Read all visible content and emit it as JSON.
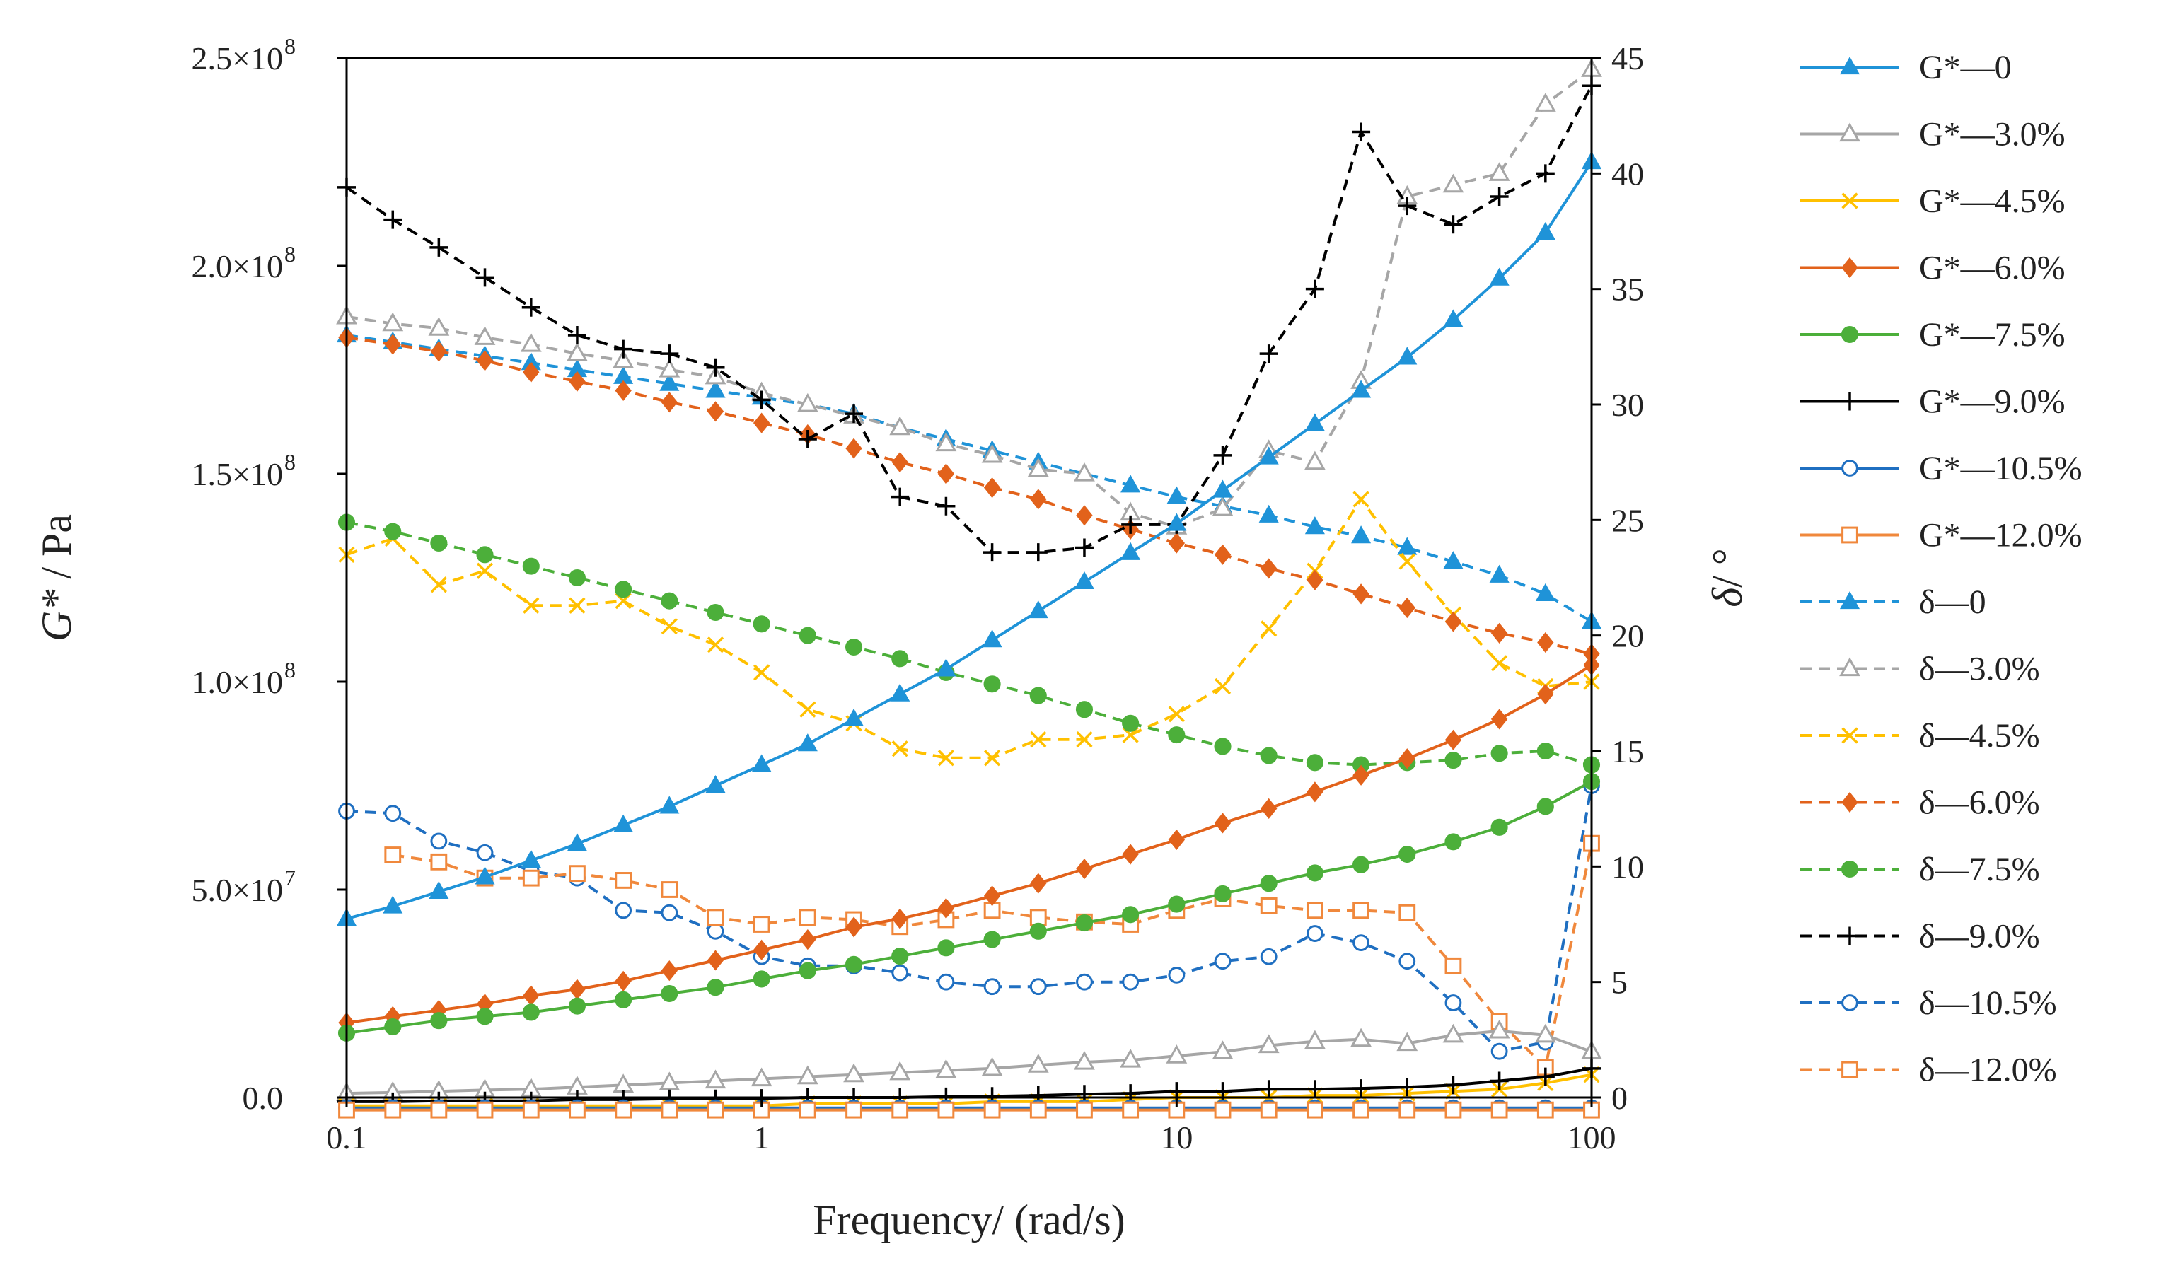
{
  "chart_data": {
    "type": "line",
    "title": "",
    "xlabel": "Frequency/ (rad/s)",
    "ylabel_left_italic": "G*",
    "ylabel_left_rest": " / Pa",
    "ylabel_right_italic": "δ",
    "ylabel_right_rest": "/ °",
    "xscale": "log",
    "xlim": [
      0.1,
      100
    ],
    "ylim_left": [
      0,
      250000000
    ],
    "ylim_right": [
      0,
      45
    ],
    "grid": false,
    "legend_position": "right",
    "x_ticks": [
      {
        "value": 0.1,
        "label": "0.1"
      },
      {
        "value": 1,
        "label": "1"
      },
      {
        "value": 10,
        "label": "10"
      },
      {
        "value": 100,
        "label": "100"
      }
    ],
    "y_left_ticks": [
      {
        "value": 0,
        "mant": "0.0",
        "exp": ""
      },
      {
        "value": 50000000,
        "mant": "5.0×10",
        "exp": "7"
      },
      {
        "value": 100000000,
        "mant": "1.0×10",
        "exp": "8"
      },
      {
        "value": 150000000,
        "mant": "1.5×10",
        "exp": "8"
      },
      {
        "value": 200000000,
        "mant": "2.0×10",
        "exp": "8"
      },
      {
        "value": 250000000,
        "mant": "2.5×10",
        "exp": "8"
      }
    ],
    "y_right_ticks": [
      {
        "value": 0,
        "label": "0"
      },
      {
        "value": 5,
        "label": "5"
      },
      {
        "value": 10,
        "label": "10"
      },
      {
        "value": 15,
        "label": "15"
      },
      {
        "value": 20,
        "label": "20"
      },
      {
        "value": 25,
        "label": "25"
      },
      {
        "value": 30,
        "label": "30"
      },
      {
        "value": 35,
        "label": "35"
      },
      {
        "value": 40,
        "label": "40"
      },
      {
        "value": 45,
        "label": "45"
      }
    ],
    "x": [
      0.1,
      0.1292,
      0.1668,
      0.2154,
      0.2783,
      0.3594,
      0.4642,
      0.5995,
      0.7743,
      1.0,
      1.2915,
      1.6681,
      2.1544,
      2.7826,
      3.5938,
      4.6416,
      5.9948,
      7.7426,
      10.0,
      12.9155,
      16.681,
      21.5443,
      27.8256,
      35.9381,
      46.4159,
      59.9484,
      77.4264,
      100.0
    ],
    "series": [
      {
        "name": "G*—0",
        "axis": "left",
        "dashed": false,
        "color": "#1f93d8",
        "marker": "triangle",
        "values": [
          43000000,
          46000000,
          49500000,
          53000000,
          57000000,
          61000000,
          65500000,
          70000000,
          75000000,
          80000000,
          85000000,
          91000000,
          97000000,
          103000000,
          110000000,
          117000000,
          124000000,
          131000000,
          138000000,
          146000000,
          154000000,
          162000000,
          170000000,
          178000000,
          187000000,
          197000000,
          208000000,
          225000000
        ]
      },
      {
        "name": "G*—3.0%",
        "axis": "left",
        "dashed": false,
        "color": "#a6a6a6",
        "marker": "triangle-open",
        "values": [
          1000000,
          1200000,
          1500000,
          1800000,
          2000000,
          2500000,
          3000000,
          3500000,
          4000000,
          4500000,
          5000000,
          5500000,
          6000000,
          6500000,
          7000000,
          7800000,
          8500000,
          9000000,
          10000000,
          11000000,
          12500000,
          13500000,
          14000000,
          13000000,
          15000000,
          16000000,
          15000000,
          11000000
        ]
      },
      {
        "name": "G*—4.5%",
        "axis": "left",
        "dashed": false,
        "color": "#ffc000",
        "marker": "x",
        "values": [
          -2000000,
          -2000000,
          -2000000,
          -2000000,
          -2000000,
          -2000000,
          -2000000,
          -2000000,
          -2000000,
          -2000000,
          -1500000,
          -1500000,
          -1500000,
          -1500000,
          -1000000,
          -1000000,
          -1000000,
          -500000,
          0,
          0,
          0,
          500000,
          500000,
          1000000,
          1500000,
          2000000,
          3500000,
          5500000
        ]
      },
      {
        "name": "G*—6.0%",
        "axis": "left",
        "dashed": false,
        "color": "#e2621b",
        "marker": "diamond",
        "values": [
          18000000,
          19500000,
          21000000,
          22500000,
          24500000,
          26000000,
          28000000,
          30500000,
          33000000,
          35500000,
          38000000,
          41000000,
          43000000,
          45500000,
          48500000,
          51500000,
          55000000,
          58500000,
          62000000,
          66000000,
          69500000,
          73500000,
          77500000,
          81500000,
          86000000,
          91000000,
          97000000,
          104000000
        ]
      },
      {
        "name": "G*—7.5%",
        "axis": "left",
        "dashed": false,
        "color": "#4caf3a",
        "marker": "circle",
        "values": [
          15500000,
          17000000,
          18500000,
          19500000,
          20500000,
          22000000,
          23500000,
          25000000,
          26500000,
          28500000,
          30500000,
          32000000,
          34000000,
          36000000,
          38000000,
          40000000,
          42000000,
          44000000,
          46500000,
          49000000,
          51500000,
          54000000,
          56000000,
          58500000,
          61500000,
          65000000,
          70000000,
          76000000
        ]
      },
      {
        "name": "G*—9.0%",
        "axis": "left",
        "dashed": false,
        "color": "#000000",
        "marker": "plus",
        "values": [
          -1000000,
          -1000000,
          -800000,
          -800000,
          -800000,
          -500000,
          -500000,
          -300000,
          -300000,
          -200000,
          0,
          0,
          0,
          200000,
          300000,
          500000,
          800000,
          1000000,
          1500000,
          1500000,
          2000000,
          2000000,
          2200000,
          2500000,
          3000000,
          4000000,
          5000000,
          7000000
        ]
      },
      {
        "name": "G*—10.5%",
        "axis": "left",
        "dashed": false,
        "color": "#1f6fc1",
        "marker": "circle-open",
        "values": [
          -2500000,
          -2500000,
          -2500000,
          -2500000,
          -2500000,
          -2500000,
          -2500000,
          -2500000,
          -2500000,
          -2500000,
          -2500000,
          -2500000,
          -2500000,
          -2500000,
          -2500000,
          -2500000,
          -2500000,
          -2500000,
          -2500000,
          -2500000,
          -2500000,
          -2500000,
          -2500000,
          -2500000,
          -2500000,
          -2500000,
          -2500000,
          -2500000
        ]
      },
      {
        "name": "G*—12.0%",
        "axis": "left",
        "dashed": false,
        "color": "#f0883c",
        "marker": "square-open",
        "values": [
          -3000000,
          -3000000,
          -3000000,
          -3000000,
          -3000000,
          -3000000,
          -3000000,
          -3000000,
          -3000000,
          -3000000,
          -3000000,
          -3000000,
          -3000000,
          -3000000,
          -3000000,
          -3000000,
          -3000000,
          -3000000,
          -3000000,
          -3000000,
          -3000000,
          -3000000,
          -3000000,
          -3000000,
          -3000000,
          -3000000,
          -3000000,
          -3000000
        ]
      },
      {
        "name": "δ—0",
        "axis": "right",
        "dashed": true,
        "color": "#1f93d8",
        "marker": "triangle",
        "values": [
          33.0,
          32.7,
          32.4,
          32.1,
          31.8,
          31.5,
          31.2,
          30.9,
          30.6,
          30.3,
          30.0,
          29.6,
          29.0,
          28.5,
          28.0,
          27.5,
          27.0,
          26.5,
          26.0,
          25.6,
          25.2,
          24.7,
          24.3,
          23.8,
          23.2,
          22.6,
          21.8,
          20.6
        ]
      },
      {
        "name": "δ—3.0%",
        "axis": "right",
        "dashed": true,
        "color": "#a6a6a6",
        "marker": "triangle-open",
        "values": [
          33.8,
          33.5,
          33.3,
          32.9,
          32.6,
          32.2,
          31.9,
          31.5,
          31.2,
          30.5,
          30.0,
          29.5,
          29.0,
          28.3,
          27.8,
          27.2,
          27.0,
          25.3,
          24.7,
          25.5,
          28.0,
          27.5,
          31.0,
          39.0,
          39.5,
          40.0,
          43.0,
          44.5
        ]
      },
      {
        "name": "δ—4.5%",
        "axis": "right",
        "dashed": true,
        "color": "#ffc000",
        "marker": "x",
        "values": [
          23.5,
          24.2,
          22.2,
          22.8,
          21.3,
          21.3,
          21.5,
          20.4,
          19.6,
          18.4,
          16.8,
          16.2,
          15.1,
          14.7,
          14.7,
          15.5,
          15.5,
          15.7,
          16.6,
          17.8,
          20.3,
          22.8,
          25.9,
          23.2,
          20.9,
          18.8,
          17.8,
          18.0
        ]
      },
      {
        "name": "δ—6.0%",
        "axis": "right",
        "dashed": true,
        "color": "#e2621b",
        "marker": "diamond",
        "values": [
          32.9,
          32.6,
          32.3,
          31.9,
          31.4,
          31.0,
          30.6,
          30.1,
          29.7,
          29.2,
          28.7,
          28.1,
          27.5,
          27.0,
          26.4,
          25.9,
          25.2,
          24.6,
          24.0,
          23.5,
          22.9,
          22.4,
          21.8,
          21.2,
          20.6,
          20.1,
          19.7,
          19.2
        ]
      },
      {
        "name": "δ—7.5%",
        "axis": "right",
        "dashed": true,
        "color": "#4caf3a",
        "marker": "circle",
        "values": [
          24.9,
          24.5,
          24.0,
          23.5,
          23.0,
          22.5,
          22.0,
          21.5,
          21.0,
          20.5,
          20.0,
          19.5,
          19.0,
          18.4,
          17.9,
          17.4,
          16.8,
          16.2,
          15.7,
          15.2,
          14.8,
          14.5,
          14.4,
          14.5,
          14.6,
          14.9,
          15.0,
          14.4
        ]
      },
      {
        "name": "δ—9.0%",
        "axis": "right",
        "dashed": true,
        "color": "#000000",
        "marker": "plus",
        "values": [
          39.4,
          38.0,
          36.8,
          35.5,
          34.2,
          33.0,
          32.4,
          32.2,
          31.6,
          30.2,
          28.5,
          29.6,
          26.0,
          25.6,
          23.6,
          23.6,
          23.8,
          24.8,
          24.8,
          27.8,
          32.2,
          35.0,
          41.8,
          38.6,
          37.8,
          39.0,
          40.0,
          43.8
        ]
      },
      {
        "name": "δ—10.5%",
        "axis": "right",
        "dashed": true,
        "color": "#1f6fc1",
        "marker": "circle-open",
        "values": [
          12.4,
          12.3,
          11.1,
          10.6,
          9.8,
          9.5,
          8.1,
          8.0,
          7.2,
          6.1,
          5.7,
          5.7,
          5.4,
          5.0,
          4.8,
          4.8,
          5.0,
          5.0,
          5.3,
          5.9,
          6.1,
          7.1,
          6.7,
          5.9,
          4.1,
          2.0,
          2.4,
          13.5
        ]
      },
      {
        "name": "δ—12.0%",
        "axis": "right",
        "dashed": true,
        "color": "#f0883c",
        "marker": "square-open",
        "values": [
          null,
          10.5,
          10.2,
          9.5,
          9.5,
          9.7,
          9.4,
          9.0,
          7.8,
          7.5,
          7.8,
          7.7,
          7.4,
          7.7,
          8.1,
          7.8,
          7.6,
          7.5,
          8.1,
          8.6,
          8.3,
          8.1,
          8.1,
          8.0,
          5.7,
          3.3,
          1.3,
          11.0
        ]
      }
    ]
  }
}
